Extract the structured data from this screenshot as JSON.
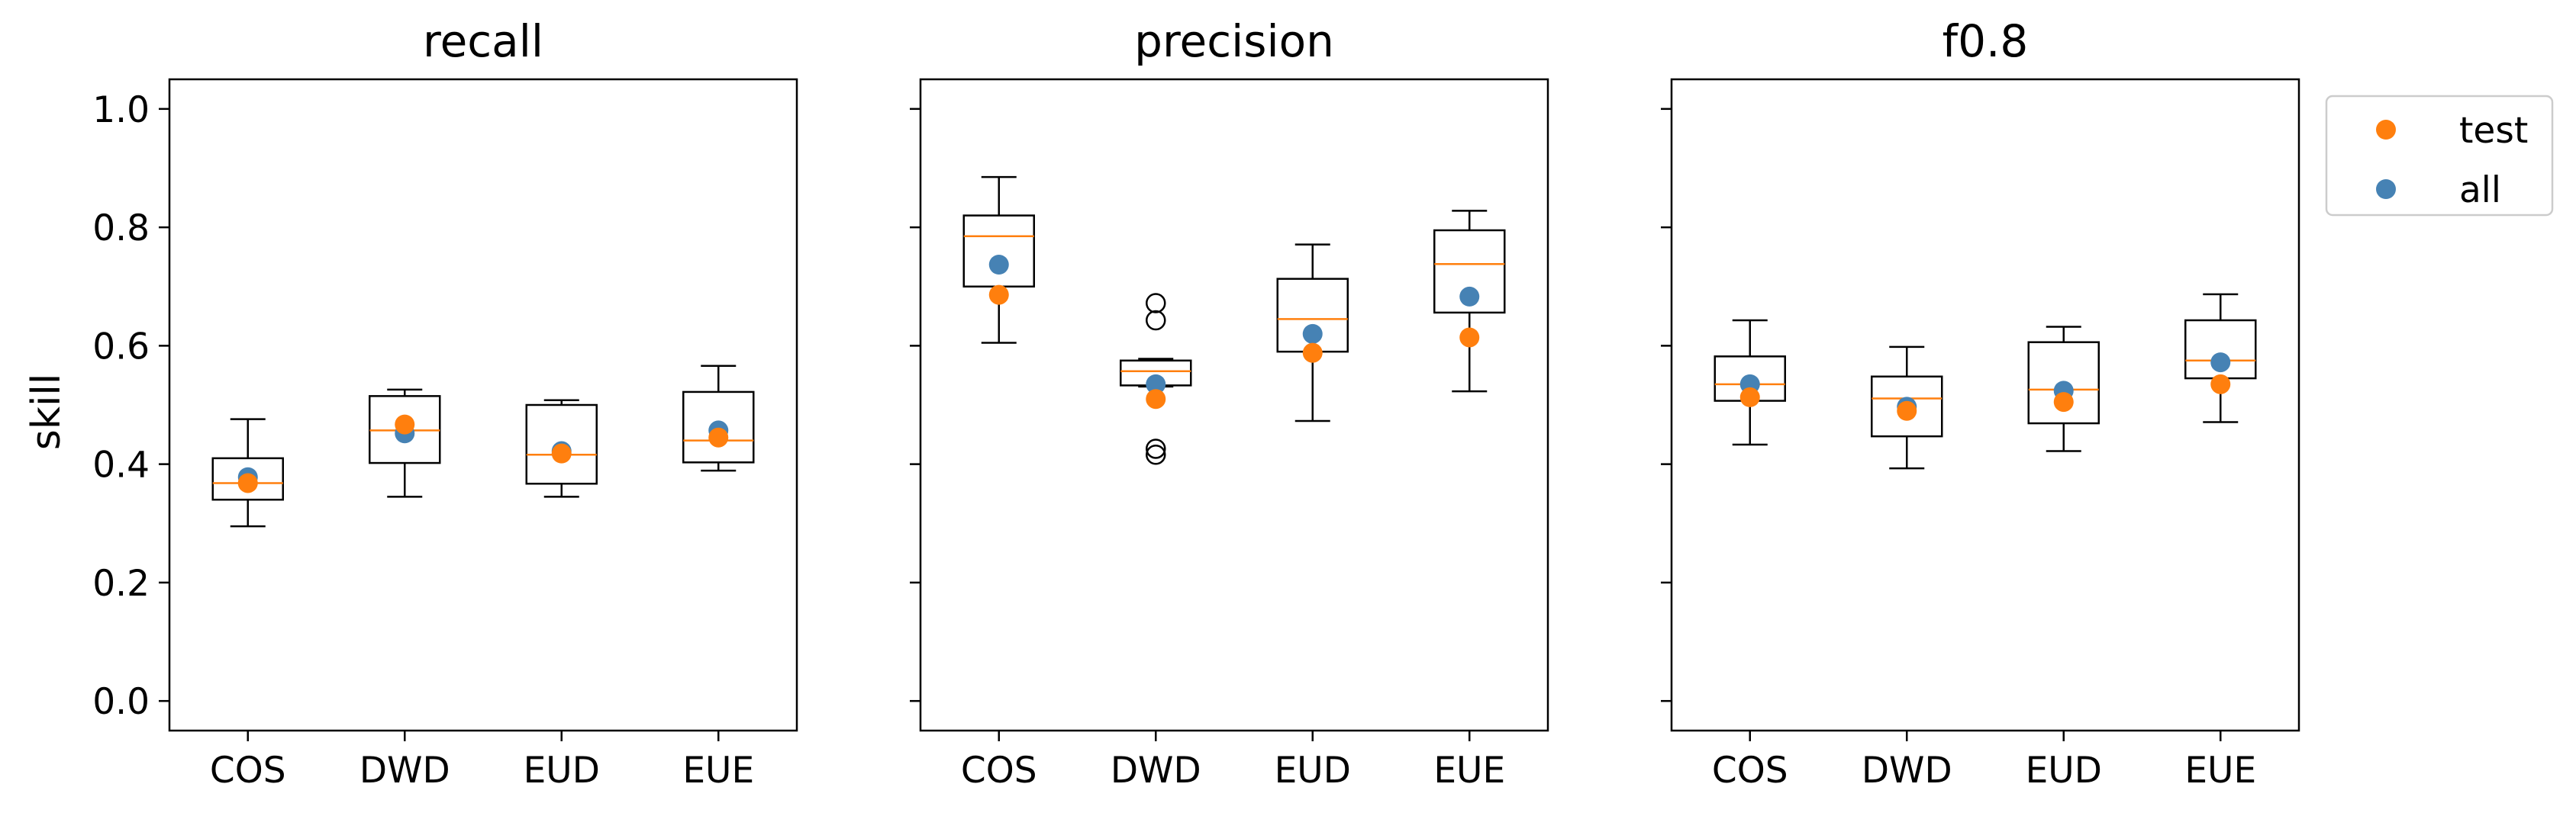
{
  "figure": {
    "ylabel": "skill",
    "legend": {
      "placement": "outside-top-right",
      "entries": [
        "test",
        "all"
      ]
    }
  },
  "colors": {
    "test": "#ff7f0e",
    "all": "#4682b4",
    "median": "#ff7f0e",
    "box": "#000000"
  },
  "chart_data": [
    {
      "type": "box",
      "title": "recall",
      "categories": [
        "COS",
        "DWD",
        "EUD",
        "EUE"
      ],
      "ylim": [
        -0.05,
        1.05
      ],
      "yticks": [
        "0.0",
        "0.2",
        "0.4",
        "0.6",
        "0.8",
        "1.0"
      ],
      "show_ytick_labels": true,
      "grid": false,
      "boxes": [
        {
          "whislo": 0.295,
          "q1": 0.34,
          "med": 0.368,
          "q3": 0.41,
          "whishi": 0.476,
          "fliers": []
        },
        {
          "whislo": 0.345,
          "q1": 0.402,
          "med": 0.457,
          "q3": 0.515,
          "whishi": 0.526,
          "fliers": []
        },
        {
          "whislo": 0.345,
          "q1": 0.367,
          "med": 0.416,
          "q3": 0.5,
          "whishi": 0.508,
          "fliers": []
        },
        {
          "whislo": 0.389,
          "q1": 0.403,
          "med": 0.44,
          "q3": 0.522,
          "whishi": 0.566,
          "fliers": []
        }
      ],
      "series": [
        {
          "name": "test",
          "values": [
            0.368,
            0.467,
            0.418,
            0.445
          ]
        },
        {
          "name": "all",
          "values": [
            0.378,
            0.452,
            0.422,
            0.457
          ]
        }
      ]
    },
    {
      "type": "box",
      "title": "precision",
      "categories": [
        "COS",
        "DWD",
        "EUD",
        "EUE"
      ],
      "ylim": [
        -0.05,
        1.05
      ],
      "yticks": [
        "0.0",
        "0.2",
        "0.4",
        "0.6",
        "0.8",
        "1.0"
      ],
      "show_ytick_labels": false,
      "grid": false,
      "boxes": [
        {
          "whislo": 0.605,
          "q1": 0.7,
          "med": 0.785,
          "q3": 0.82,
          "whishi": 0.885,
          "fliers": []
        },
        {
          "whislo": 0.531,
          "q1": 0.533,
          "med": 0.557,
          "q3": 0.575,
          "whishi": 0.578,
          "fliers": [
            0.672,
            0.643,
            0.426,
            0.416
          ]
        },
        {
          "whislo": 0.473,
          "q1": 0.59,
          "med": 0.645,
          "q3": 0.713,
          "whishi": 0.771,
          "fliers": []
        },
        {
          "whislo": 0.523,
          "q1": 0.656,
          "med": 0.738,
          "q3": 0.795,
          "whishi": 0.828,
          "fliers": []
        }
      ],
      "series": [
        {
          "name": "test",
          "values": [
            0.686,
            0.51,
            0.588,
            0.614
          ]
        },
        {
          "name": "all",
          "values": [
            0.737,
            0.535,
            0.62,
            0.683
          ]
        }
      ]
    },
    {
      "type": "box",
      "title": "f0.8",
      "categories": [
        "COS",
        "DWD",
        "EUD",
        "EUE"
      ],
      "ylim": [
        -0.05,
        1.05
      ],
      "yticks": [
        "0.0",
        "0.2",
        "0.4",
        "0.6",
        "0.8",
        "1.0"
      ],
      "show_ytick_labels": false,
      "grid": false,
      "boxes": [
        {
          "whislo": 0.433,
          "q1": 0.507,
          "med": 0.535,
          "q3": 0.582,
          "whishi": 0.643,
          "fliers": []
        },
        {
          "whislo": 0.393,
          "q1": 0.447,
          "med": 0.511,
          "q3": 0.548,
          "whishi": 0.598,
          "fliers": []
        },
        {
          "whislo": 0.422,
          "q1": 0.469,
          "med": 0.526,
          "q3": 0.606,
          "whishi": 0.632,
          "fliers": []
        },
        {
          "whislo": 0.471,
          "q1": 0.545,
          "med": 0.575,
          "q3": 0.643,
          "whishi": 0.687,
          "fliers": []
        }
      ],
      "series": [
        {
          "name": "test",
          "values": [
            0.513,
            0.49,
            0.505,
            0.535
          ]
        },
        {
          "name": "all",
          "values": [
            0.535,
            0.497,
            0.524,
            0.572
          ]
        }
      ]
    }
  ]
}
